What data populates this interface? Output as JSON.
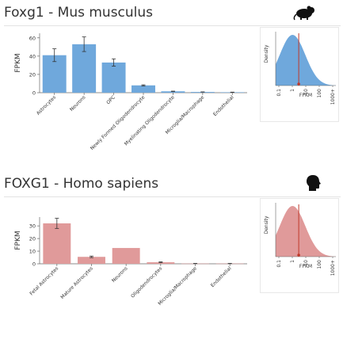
{
  "sections": [
    {
      "title": "Foxg1 - Mus musculus",
      "icon": "mouse-icon",
      "color": "#6fa8dc"
    },
    {
      "title": "FOXG1 - Homo sapiens",
      "icon": "human-head-icon",
      "color": "#e09a9a"
    }
  ],
  "chart_data": [
    {
      "type": "bar",
      "ylabel": "FPKM",
      "ylim": [
        0,
        65
      ],
      "yticks": [
        0,
        20,
        40,
        60
      ],
      "categories": [
        "Astrocytes",
        "Neurons",
        "OPC",
        "Newly Formed Oligodendrocyte",
        "Myelinating Oligodendrocyte",
        "Microglia/Macrophage",
        "Endothelial"
      ],
      "values": [
        41,
        53,
        33,
        8,
        1.5,
        0.8,
        0.5
      ],
      "error": [
        7,
        8,
        4,
        0.6,
        0.2,
        0.1,
        0.1
      ],
      "color": "#6fa8dc"
    },
    {
      "type": "area",
      "ylabel": "Density",
      "xlabel": "FPKM",
      "xticks": [
        "0.1",
        "1",
        "10",
        "100",
        "1000+"
      ],
      "marker_x": "3",
      "color": "#6fa8dc",
      "marker_color": "#c0392b"
    },
    {
      "type": "bar",
      "ylabel": "FPKM",
      "ylim": [
        0,
        37
      ],
      "yticks": [
        0,
        10,
        20,
        30
      ],
      "categories": [
        "Fetal Astrocytes",
        "Mature Astrocytes",
        "Neurons",
        "Oligodendrocytes",
        "Microglia/Macrophage",
        "Endothelial"
      ],
      "values": [
        32,
        5.5,
        12.5,
        1.2,
        0.2,
        0.2
      ],
      "error": [
        4,
        0.6,
        0,
        0.3,
        0.1,
        0.1
      ],
      "color": "#e09a9a"
    },
    {
      "type": "area",
      "ylabel": "Density",
      "xlabel": "FPKM",
      "xticks": [
        "0.1",
        "1",
        "10",
        "100",
        "1000+"
      ],
      "marker_x": "3",
      "color": "#e09a9a",
      "marker_color": "#c0392b"
    }
  ]
}
